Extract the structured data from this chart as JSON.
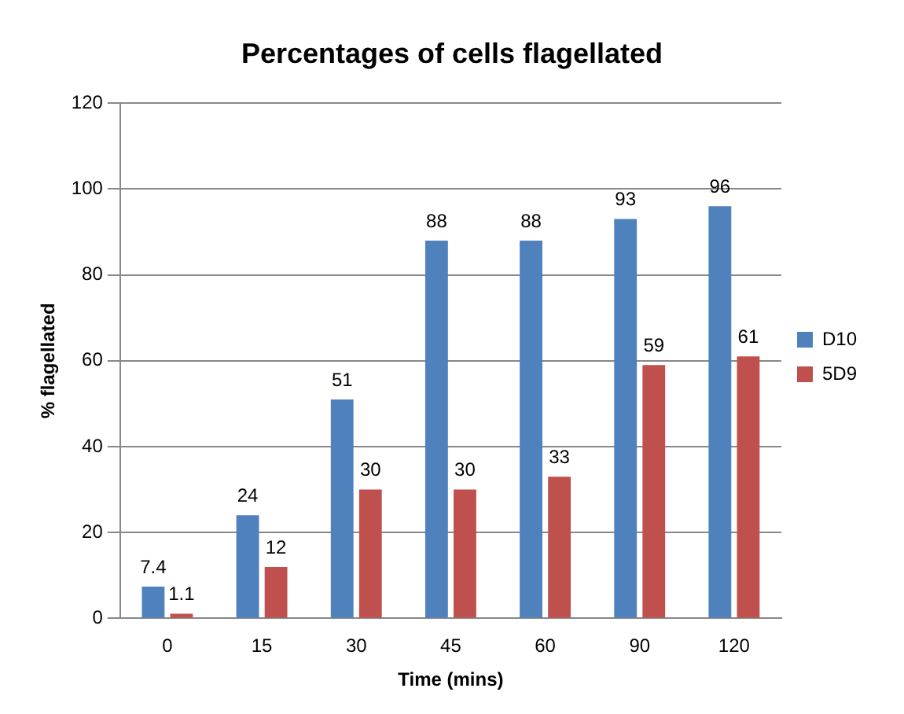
{
  "chart_data": {
    "type": "bar",
    "title": "Percentages of cells flagellated",
    "xlabel": "Time (mins)",
    "ylabel": "% flagellated",
    "categories": [
      "0",
      "15",
      "30",
      "45",
      "60",
      "90",
      "120"
    ],
    "series": [
      {
        "name": "D10",
        "color": "#4f81bd",
        "values": [
          7.4,
          24,
          51,
          88,
          88,
          93,
          96
        ]
      },
      {
        "name": "5D9",
        "color": "#c0504d",
        "values": [
          1.1,
          12,
          30,
          30,
          33,
          59,
          61
        ]
      }
    ],
    "ylim": [
      0,
      120
    ],
    "yticks": [
      0,
      20,
      40,
      60,
      80,
      100,
      120
    ],
    "grid": "y",
    "legend": "right",
    "data_labels": true
  }
}
